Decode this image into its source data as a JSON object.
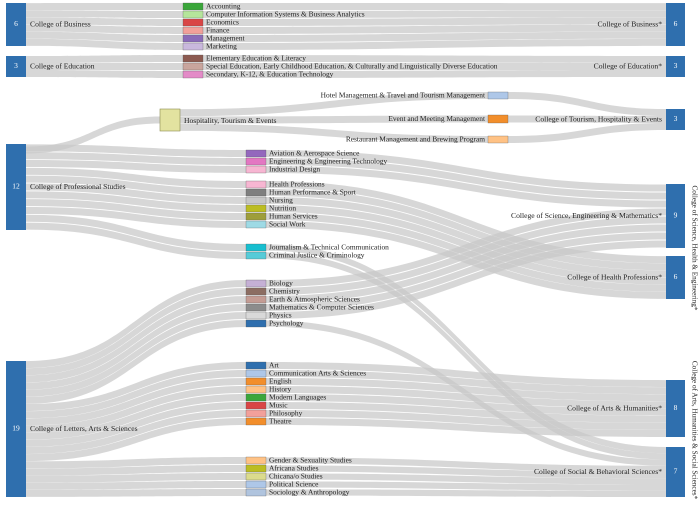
{
  "diagram": {
    "left_nodes": [
      {
        "id": "business",
        "label": "College of Business",
        "count": "6"
      },
      {
        "id": "education",
        "label": "College of Education",
        "count": "3"
      },
      {
        "id": "professional",
        "label": "College of Professional Studies",
        "count": "12"
      },
      {
        "id": "letters",
        "label": "College of Letters, Arts & Sciences",
        "count": "19"
      }
    ],
    "mid_group": {
      "label": "Hospitality, Tourism & Events"
    },
    "departments": [
      {
        "name": "Accounting",
        "color": "#3aa63a"
      },
      {
        "name": "Computer Information Systems & Business Analytics",
        "color": "#b5e59b"
      },
      {
        "name": "Economics",
        "color": "#d94545"
      },
      {
        "name": "Finance",
        "color": "#f2a09a"
      },
      {
        "name": "Management",
        "color": "#8a6bb8"
      },
      {
        "name": "Marketing",
        "color": "#c9b8dd"
      },
      {
        "name": "Elementary Education & Literacy",
        "color": "#8c5a50"
      },
      {
        "name": "Special Education, Early Childhood Education, & Culturally and Linguistically Diverse Education",
        "color": "#c9a59d"
      },
      {
        "name": "Secondary, K-12, & Education Technology",
        "color": "#e38bc7"
      },
      {
        "name": "Hotel Management & Travel and Tourism Management",
        "color": "#aec7e8"
      },
      {
        "name": "Event and Meeting Management",
        "color": "#f28e2b"
      },
      {
        "name": "Restaurant Management and Brewing Program",
        "color": "#ffc285"
      },
      {
        "name": "Aviation & Aerospace Science",
        "color": "#9467bd"
      },
      {
        "name": "Engineering & Engineering Technology",
        "color": "#e377c2"
      },
      {
        "name": "Industrial Design",
        "color": "#f7b6d2"
      },
      {
        "name": "Health Professions",
        "color": "#f7b6d2"
      },
      {
        "name": "Human Performance & Sport",
        "color": "#7f7f7f"
      },
      {
        "name": "Nursing",
        "color": "#c7c7c7"
      },
      {
        "name": "Nutrition",
        "color": "#bcbd22"
      },
      {
        "name": "Human Services",
        "color": "#9e9e3a"
      },
      {
        "name": "Social Work",
        "color": "#9edae5"
      },
      {
        "name": "Journalism & Technical Communication",
        "color": "#17becf"
      },
      {
        "name": "Criminal Justice & Criminology",
        "color": "#56cbd8"
      },
      {
        "name": "Biology",
        "color": "#c5b0d5"
      },
      {
        "name": "Chemistry",
        "color": "#8c6d62"
      },
      {
        "name": "Earth & Atmospheric Sciences",
        "color": "#c49c94"
      },
      {
        "name": "Mathematics & Computer Sciences",
        "color": "#8c8c8c"
      },
      {
        "name": "Physics",
        "color": "#d9d9d9"
      },
      {
        "name": "Psychology",
        "color": "#2f6fae"
      },
      {
        "name": "Art",
        "color": "#2f6fae"
      },
      {
        "name": "Communication Arts & Sciences",
        "color": "#aec7e8"
      },
      {
        "name": "English",
        "color": "#f28e2b"
      },
      {
        "name": "History",
        "color": "#ffc285"
      },
      {
        "name": "Modern Languages",
        "color": "#3aa63a"
      },
      {
        "name": "Music",
        "color": "#d94545"
      },
      {
        "name": "Philosophy",
        "color": "#f2a09a"
      },
      {
        "name": "Theatre",
        "color": "#f28e2b"
      },
      {
        "name": "Gender & Sexuality Studies",
        "color": "#ffc285"
      },
      {
        "name": "Africana Studies",
        "color": "#bcbd22"
      },
      {
        "name": "Chicana/o Studies",
        "color": "#dbdb8d"
      },
      {
        "name": "Political Science",
        "color": "#aec7e8"
      },
      {
        "name": "Sociology & Anthropology",
        "color": "#b0c4de"
      }
    ],
    "right_nodes": [
      {
        "id": "r_business",
        "label": "College of Business*",
        "count": "6"
      },
      {
        "id": "r_education",
        "label": "College of Education*",
        "count": "3"
      },
      {
        "id": "r_tourism",
        "label": "College of Tourism, Hospitality & Events",
        "count": "3"
      },
      {
        "id": "r_science",
        "label": "College of Science, Engineering & Mathematics*",
        "count": "9"
      },
      {
        "id": "r_health",
        "label": "College of Health Professions*",
        "count": "6"
      },
      {
        "id": "r_arts",
        "label": "College of Arts & Humanities*",
        "count": "8"
      },
      {
        "id": "r_social",
        "label": "College of Social & Behavioral Sciences*",
        "count": "7"
      }
    ],
    "group_labels": {
      "she": "College of Science, Health & Engineering*",
      "ahss": "College of Arts, Humanities & Social Sciences*"
    },
    "colors": {
      "node": "#2f6fae",
      "link": "#c8c8c8",
      "mid_node": "#e3e3a0",
      "text": "#222222"
    }
  }
}
